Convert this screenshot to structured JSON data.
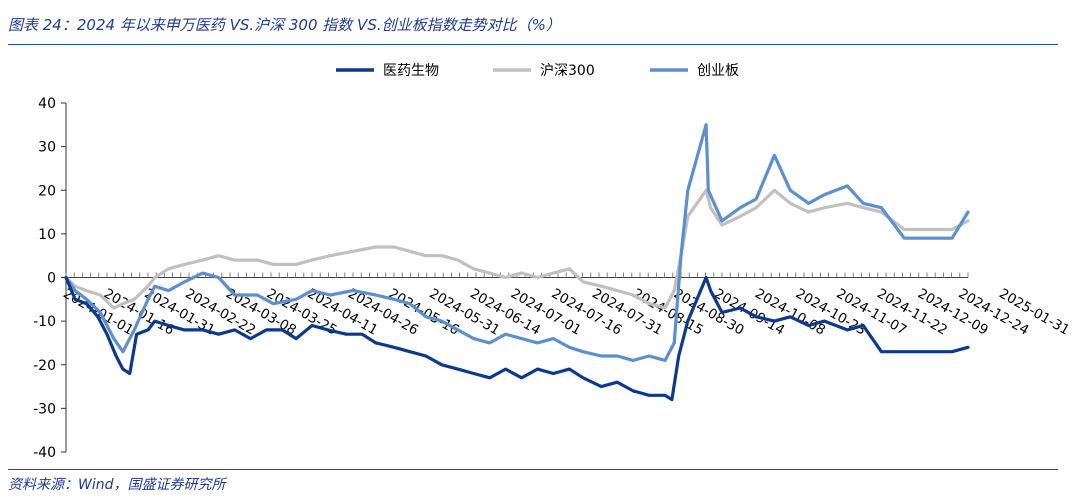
{
  "header": {
    "title": "图表 24：2024 年以来申万医药 VS.沪深 300 指数 VS.创业板指数走势对比（%）"
  },
  "footer": {
    "source": "资料来源：Wind，国盛证券研究所"
  },
  "chart_data": {
    "type": "line",
    "title": "图表 24：2024 年以来申万医药 VS.沪深 300 指数 VS.创业板指数走势对比（%）",
    "ylim": [
      -40,
      40
    ],
    "yticks": [
      40,
      30,
      20,
      10,
      0,
      -10,
      -20,
      -30,
      -40
    ],
    "xlabel": "",
    "ylabel": "",
    "grid": false,
    "legend_position": "top-center",
    "x_start": "2024-01-01",
    "x_end": "2025-01-31",
    "xtick_labels": [
      "2024-01-01",
      "2024-01-16",
      "2024-01-31",
      "2024-02-22",
      "2024-03-08",
      "2024-03-25",
      "2024-04-11",
      "2024-04-26",
      "2024-05-16",
      "2024-05-31",
      "2024-06-14",
      "2024-07-01",
      "2024-07-16",
      "2024-07-31",
      "2024-08-15",
      "2024-08-30",
      "2024-09-14",
      "2024-10-08",
      "2024-10-23",
      "2024-11-07",
      "2024-11-22",
      "2024-12-09",
      "2024-12-24",
      "2025-01-31"
    ],
    "series": [
      {
        "name": "医药生物",
        "color": "#0a3a8c",
        "points": [
          [
            "2024-01-01",
            0
          ],
          [
            "2024-01-05",
            -5
          ],
          [
            "2024-01-10",
            -6
          ],
          [
            "2024-01-15",
            -9
          ],
          [
            "2024-01-19",
            -13
          ],
          [
            "2024-01-23",
            -18
          ],
          [
            "2024-01-26",
            -21
          ],
          [
            "2024-01-29",
            -22
          ],
          [
            "2024-02-01",
            -13
          ],
          [
            "2024-02-06",
            -12
          ],
          [
            "2024-02-09",
            -10
          ],
          [
            "2024-02-15",
            -11
          ],
          [
            "2024-02-22",
            -12
          ],
          [
            "2024-03-01",
            -12
          ],
          [
            "2024-03-08",
            -13
          ],
          [
            "2024-03-15",
            -12
          ],
          [
            "2024-03-22",
            -14
          ],
          [
            "2024-03-29",
            -12
          ],
          [
            "2024-04-05",
            -12
          ],
          [
            "2024-04-11",
            -14
          ],
          [
            "2024-04-18",
            -11
          ],
          [
            "2024-04-25",
            -12
          ],
          [
            "2024-05-03",
            -13
          ],
          [
            "2024-05-10",
            -13
          ],
          [
            "2024-05-16",
            -15
          ],
          [
            "2024-05-24",
            -16
          ],
          [
            "2024-05-31",
            -17
          ],
          [
            "2024-06-07",
            -18
          ],
          [
            "2024-06-14",
            -20
          ],
          [
            "2024-06-21",
            -21
          ],
          [
            "2024-06-28",
            -22
          ],
          [
            "2024-07-05",
            -23
          ],
          [
            "2024-07-12",
            -21
          ],
          [
            "2024-07-19",
            -23
          ],
          [
            "2024-07-26",
            -21
          ],
          [
            "2024-08-02",
            -22
          ],
          [
            "2024-08-09",
            -21
          ],
          [
            "2024-08-15",
            -23
          ],
          [
            "2024-08-23",
            -25
          ],
          [
            "2024-08-30",
            -24
          ],
          [
            "2024-09-06",
            -26
          ],
          [
            "2024-09-13",
            -27
          ],
          [
            "2024-09-20",
            -27
          ],
          [
            "2024-09-23",
            -28
          ],
          [
            "2024-09-26",
            -18
          ],
          [
            "2024-09-30",
            -10
          ],
          [
            "2024-10-08",
            0
          ],
          [
            "2024-10-10",
            -3
          ],
          [
            "2024-10-15",
            -8
          ],
          [
            "2024-10-23",
            -7
          ],
          [
            "2024-10-30",
            -9
          ],
          [
            "2024-11-07",
            -10
          ],
          [
            "2024-11-14",
            -9
          ],
          [
            "2024-11-22",
            -11
          ],
          [
            "2024-11-29",
            -10
          ],
          [
            "2024-12-09",
            -12
          ],
          [
            "2024-12-16",
            -11
          ],
          [
            "2024-12-24",
            -17
          ],
          [
            "2025-01-03",
            -17
          ],
          [
            "2025-01-15",
            -17
          ],
          [
            "2025-01-24",
            -17
          ],
          [
            "2025-01-31",
            -16
          ]
        ]
      },
      {
        "name": "沪深300",
        "color": "#c0c0c0",
        "points": [
          [
            "2024-01-01",
            0
          ],
          [
            "2024-01-05",
            -2
          ],
          [
            "2024-01-10",
            -3
          ],
          [
            "2024-01-16",
            -4
          ],
          [
            "2024-01-22",
            -7
          ],
          [
            "2024-01-26",
            -6
          ],
          [
            "2024-01-31",
            -5
          ],
          [
            "2024-02-06",
            -2
          ],
          [
            "2024-02-09",
            0
          ],
          [
            "2024-02-15",
            2
          ],
          [
            "2024-02-22",
            3
          ],
          [
            "2024-03-01",
            4
          ],
          [
            "2024-03-08",
            5
          ],
          [
            "2024-03-15",
            4
          ],
          [
            "2024-03-25",
            4
          ],
          [
            "2024-04-01",
            3
          ],
          [
            "2024-04-11",
            3
          ],
          [
            "2024-04-18",
            4
          ],
          [
            "2024-04-26",
            5
          ],
          [
            "2024-05-06",
            6
          ],
          [
            "2024-05-16",
            7
          ],
          [
            "2024-05-24",
            7
          ],
          [
            "2024-05-31",
            6
          ],
          [
            "2024-06-07",
            5
          ],
          [
            "2024-06-14",
            5
          ],
          [
            "2024-06-21",
            4
          ],
          [
            "2024-06-28",
            2
          ],
          [
            "2024-07-05",
            1
          ],
          [
            "2024-07-12",
            0
          ],
          [
            "2024-07-19",
            1
          ],
          [
            "2024-07-26",
            0
          ],
          [
            "2024-08-02",
            1
          ],
          [
            "2024-08-09",
            2
          ],
          [
            "2024-08-15",
            -1
          ],
          [
            "2024-08-23",
            -2
          ],
          [
            "2024-08-30",
            -3
          ],
          [
            "2024-09-06",
            -4
          ],
          [
            "2024-09-13",
            -6
          ],
          [
            "2024-09-20",
            -7
          ],
          [
            "2024-09-24",
            -3
          ],
          [
            "2024-09-27",
            5
          ],
          [
            "2024-09-30",
            14
          ],
          [
            "2024-10-08",
            20
          ],
          [
            "2024-10-10",
            16
          ],
          [
            "2024-10-15",
            12
          ],
          [
            "2024-10-23",
            14
          ],
          [
            "2024-10-30",
            16
          ],
          [
            "2024-11-07",
            20
          ],
          [
            "2024-11-14",
            17
          ],
          [
            "2024-11-22",
            15
          ],
          [
            "2024-11-29",
            16
          ],
          [
            "2024-12-09",
            17
          ],
          [
            "2024-12-16",
            16
          ],
          [
            "2024-12-24",
            15
          ],
          [
            "2025-01-03",
            11
          ],
          [
            "2025-01-15",
            11
          ],
          [
            "2025-01-24",
            11
          ],
          [
            "2025-01-31",
            13
          ]
        ]
      },
      {
        "name": "创业板",
        "color": "#5b8fd0",
        "points": [
          [
            "2024-01-01",
            0
          ],
          [
            "2024-01-05",
            -3
          ],
          [
            "2024-01-10",
            -5
          ],
          [
            "2024-01-16",
            -8
          ],
          [
            "2024-01-22",
            -14
          ],
          [
            "2024-01-26",
            -17
          ],
          [
            "2024-01-31",
            -12
          ],
          [
            "2024-02-06",
            -5
          ],
          [
            "2024-02-09",
            -2
          ],
          [
            "2024-02-15",
            -3
          ],
          [
            "2024-02-22",
            -1
          ],
          [
            "2024-03-01",
            1
          ],
          [
            "2024-03-08",
            0
          ],
          [
            "2024-03-15",
            -4
          ],
          [
            "2024-03-25",
            -4
          ],
          [
            "2024-04-01",
            -6
          ],
          [
            "2024-04-11",
            -5
          ],
          [
            "2024-04-18",
            -3
          ],
          [
            "2024-04-26",
            -4
          ],
          [
            "2024-05-06",
            -3
          ],
          [
            "2024-05-16",
            -4
          ],
          [
            "2024-05-24",
            -5
          ],
          [
            "2024-05-31",
            -6
          ],
          [
            "2024-06-07",
            -9
          ],
          [
            "2024-06-14",
            -10
          ],
          [
            "2024-06-21",
            -12
          ],
          [
            "2024-06-28",
            -14
          ],
          [
            "2024-07-05",
            -15
          ],
          [
            "2024-07-12",
            -13
          ],
          [
            "2024-07-19",
            -14
          ],
          [
            "2024-07-26",
            -15
          ],
          [
            "2024-08-02",
            -14
          ],
          [
            "2024-08-09",
            -16
          ],
          [
            "2024-08-15",
            -17
          ],
          [
            "2024-08-23",
            -18
          ],
          [
            "2024-08-30",
            -18
          ],
          [
            "2024-09-06",
            -19
          ],
          [
            "2024-09-13",
            -18
          ],
          [
            "2024-09-20",
            -19
          ],
          [
            "2024-09-24",
            -15
          ],
          [
            "2024-09-27",
            5
          ],
          [
            "2024-09-30",
            20
          ],
          [
            "2024-10-08",
            35
          ],
          [
            "2024-10-09",
            20
          ],
          [
            "2024-10-15",
            13
          ],
          [
            "2024-10-23",
            16
          ],
          [
            "2024-10-30",
            18
          ],
          [
            "2024-11-07",
            28
          ],
          [
            "2024-11-14",
            20
          ],
          [
            "2024-11-22",
            17
          ],
          [
            "2024-11-29",
            19
          ],
          [
            "2024-12-09",
            21
          ],
          [
            "2024-12-16",
            17
          ],
          [
            "2024-12-24",
            16
          ],
          [
            "2025-01-03",
            9
          ],
          [
            "2025-01-15",
            9
          ],
          [
            "2025-01-24",
            9
          ],
          [
            "2025-01-31",
            15
          ]
        ]
      }
    ]
  }
}
